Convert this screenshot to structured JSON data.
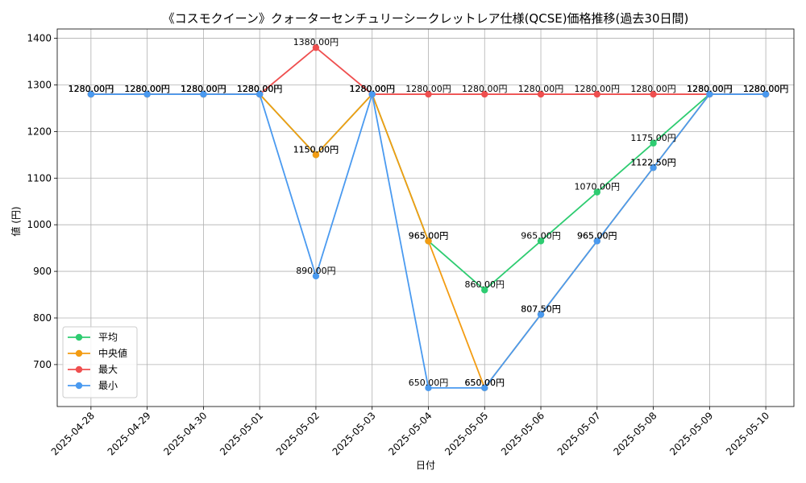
{
  "chart_data": {
    "type": "line",
    "title": "《コスモクイーン》クォーターセンチュリーシークレットレア仕様(QCSE)価格推移(過去30日間)",
    "xlabel": "日付",
    "ylabel": "値 (円)",
    "ylim": [
      610,
      1420
    ],
    "yticks": [
      700,
      800,
      900,
      1000,
      1100,
      1200,
      1300,
      1400
    ],
    "categories": [
      "2025-04-28",
      "2025-04-29",
      "2025-04-30",
      "2025-05-01",
      "2025-05-02",
      "2025-05-03",
      "2025-05-04",
      "2025-05-05",
      "2025-05-06",
      "2025-05-07",
      "2025-05-08",
      "2025-05-09",
      "2025-05-10"
    ],
    "series": [
      {
        "name": "平均",
        "color": "#2ecc71",
        "values": [
          1280,
          1280,
          1280,
          1280,
          1150,
          1280,
          965,
          860,
          965,
          1070,
          1175,
          1280,
          1280
        ]
      },
      {
        "name": "中央値",
        "color": "#f39c12",
        "values": [
          1280,
          1280,
          1280,
          1280,
          1150,
          1280,
          965,
          650,
          807.5,
          965,
          1122.5,
          1280,
          1280
        ]
      },
      {
        "name": "最大",
        "color": "#ef4f4f",
        "values": [
          1280,
          1280,
          1280,
          1280,
          1380,
          1280,
          1280,
          1280,
          1280,
          1280,
          1280,
          1280,
          1280
        ]
      },
      {
        "name": "最小",
        "color": "#4a9af0",
        "values": [
          1280,
          1280,
          1280,
          1280,
          890,
          1280,
          650,
          650,
          807.5,
          965,
          1122.5,
          1280,
          1280
        ]
      }
    ],
    "value_suffix": "円",
    "legend": "lower-left",
    "grid": true
  }
}
